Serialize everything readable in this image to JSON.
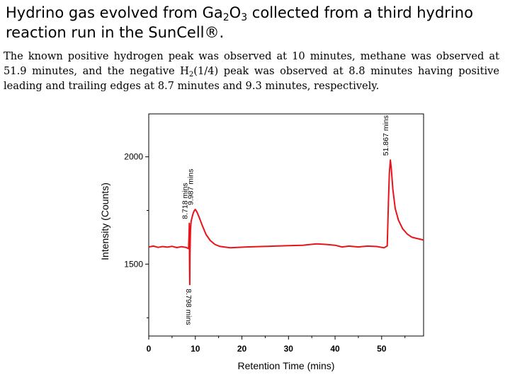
{
  "slide": {
    "title": {
      "part1": "Hydrino gas evolved from Ga",
      "sub1": "2",
      "part2": "O",
      "sub2": "3",
      "part3": " collected from a third hydrino reaction run in the SunCell®."
    },
    "description": {
      "part1": "The known positive hydrogen peak was observed at 10 minutes, methane was observed at 51.9 minutes, and the negative H",
      "sub": "2",
      "part2": "(1/4) peak was observed at 8.8 minutes having positive leading and trailing edges at 8.7 minutes and 9.3 minutes, respectively."
    }
  },
  "chart_data": {
    "type": "line",
    "xlabel": "Retention Time (mins)",
    "ylabel": "Intensity (Counts)",
    "xlim": [
      0,
      59
    ],
    "ylim": [
      1165,
      2200
    ],
    "x_ticks": [
      0,
      10,
      20,
      30,
      40,
      50
    ],
    "x_minor_ticks": [
      5,
      15,
      25,
      35,
      45,
      55
    ],
    "y_ticks": [
      1500,
      2000
    ],
    "y_minor_ticks": [
      1250,
      1750
    ],
    "series_color": "#e8141a",
    "series": [
      {
        "name": "trace",
        "x": [
          0,
          1,
          2,
          3,
          4,
          5,
          6,
          7,
          8,
          8.55,
          8.65,
          8.718,
          8.76,
          8.798,
          8.85,
          8.95,
          9.1,
          9.3,
          9.5,
          9.75,
          9.987,
          10.3,
          10.8,
          11.5,
          12.3,
          13.2,
          14.2,
          15.2,
          16.2,
          17.5,
          19,
          21,
          24,
          27,
          30,
          33,
          36,
          38,
          40,
          41.5,
          43,
          45,
          47,
          49,
          50.5,
          51.2,
          51.45,
          51.65,
          51.867,
          52.05,
          52.4,
          52.9,
          53.6,
          54.5,
          55.5,
          56.5,
          57.5,
          58.5,
          59
        ],
        "y": [
          1580,
          1584,
          1578,
          1582,
          1579,
          1583,
          1577,
          1581,
          1578,
          1572,
          1640,
          1690,
          1500,
          1405,
          1545,
          1655,
          1700,
          1718,
          1735,
          1748,
          1755,
          1745,
          1720,
          1680,
          1638,
          1610,
          1592,
          1583,
          1580,
          1576,
          1578,
          1580,
          1582,
          1584,
          1586,
          1588,
          1594,
          1592,
          1588,
          1580,
          1584,
          1580,
          1584,
          1582,
          1576,
          1585,
          1780,
          1925,
          1985,
          1950,
          1850,
          1760,
          1705,
          1665,
          1640,
          1625,
          1620,
          1615,
          1612
        ]
      }
    ],
    "annotations": [
      {
        "text": "8.718 mins",
        "x": 8.718,
        "y": 1690,
        "placement": "above",
        "rotation": -90
      },
      {
        "text": "9.987 mins",
        "x": 9.987,
        "y": 1755,
        "placement": "above",
        "rotation": -90
      },
      {
        "text": "8.798 mins",
        "x": 8.798,
        "y": 1405,
        "placement": "below",
        "rotation": 90
      },
      {
        "text": "51.867 mins",
        "x": 51.867,
        "y": 1985,
        "placement": "above",
        "rotation": -90
      }
    ]
  }
}
